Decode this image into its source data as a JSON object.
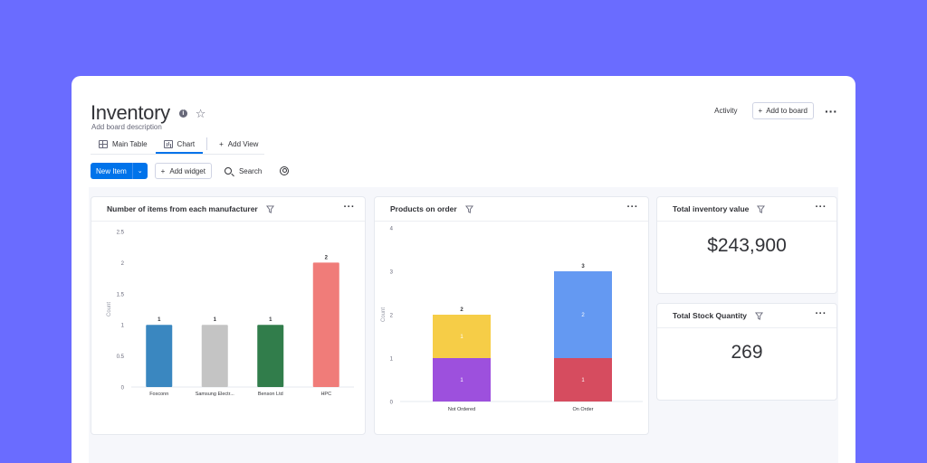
{
  "board": {
    "title": "Inventory",
    "description": "Add board description",
    "activity_label": "Activity",
    "add_to_board_label": "Add to board"
  },
  "tabs": [
    {
      "label": "Main Table",
      "icon": "table-icon"
    },
    {
      "label": "Chart",
      "icon": "chart-icon",
      "active": true
    },
    {
      "label": "Add View",
      "icon": "plus-icon"
    }
  ],
  "toolbar": {
    "new_item_label": "New Item",
    "add_widget_label": "Add widget",
    "search_label": "Search"
  },
  "widgets": {
    "manufacturer": {
      "title": "Number of items from each manufacturer"
    },
    "orders": {
      "title": "Products on order"
    },
    "inventory_value": {
      "title": "Total inventory value",
      "value": "$243,900"
    },
    "stock_quantity": {
      "title": "Total Stock Quantity",
      "value": "269"
    }
  },
  "colors": {
    "background": "#6a6cff",
    "primary": "#0073ea",
    "foxconn": "#3a87c0",
    "samsung": "#c4c4c4",
    "benson": "#317d4b",
    "hpc": "#f07c79",
    "not_ordered_bottom": "#9d50dd",
    "not_ordered_top": "#f6cd47",
    "on_order_bottom": "#d64c5f",
    "on_order_top": "#6499f2"
  },
  "chart_data": [
    {
      "type": "bar",
      "title": "Number of items from each manufacturer",
      "categories": [
        "Foxconn",
        "Samsung Electr...",
        "Benson Ltd",
        "HPC"
      ],
      "values": [
        1,
        1,
        1,
        2
      ],
      "ylabel": "Count",
      "ylim": [
        0,
        2.5
      ],
      "yticks": [
        "0",
        "0.5",
        "1",
        "1.5",
        "2",
        "2.5"
      ]
    },
    {
      "type": "bar",
      "stacked": true,
      "title": "Products on order",
      "categories": [
        "Not Ordered",
        "On Order"
      ],
      "series": [
        {
          "values": [
            1,
            1
          ]
        },
        {
          "values": [
            1,
            2
          ]
        }
      ],
      "totals": [
        2,
        3
      ],
      "ylabel": "Count",
      "ylim": [
        0,
        4
      ],
      "yticks": [
        "0",
        "1",
        "2",
        "3",
        "4"
      ]
    }
  ]
}
